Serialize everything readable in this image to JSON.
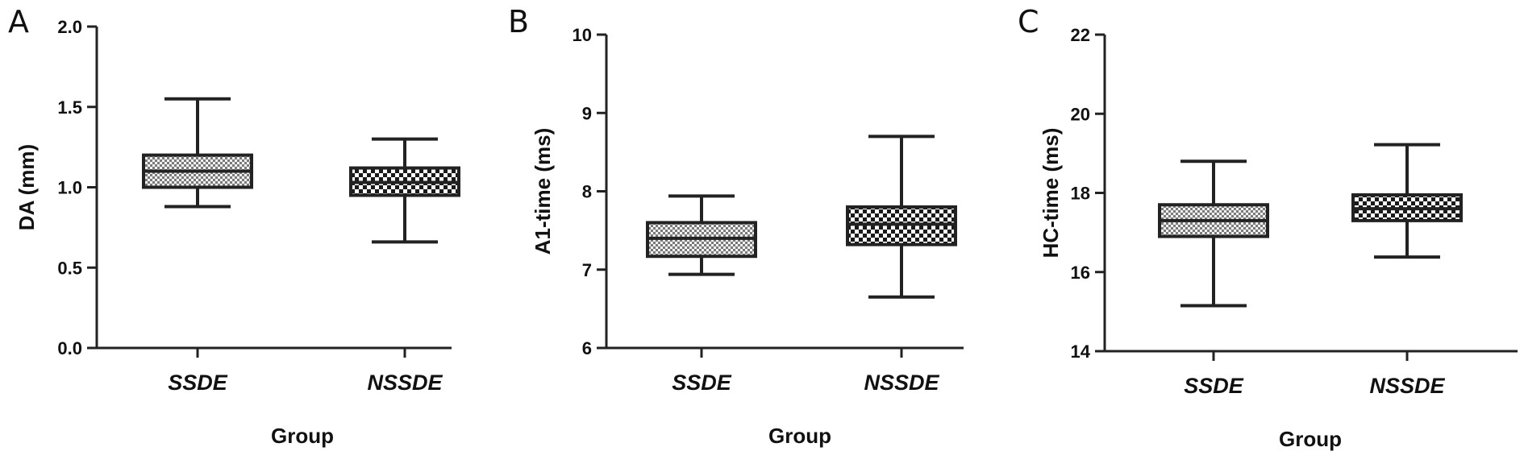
{
  "chart_data": [
    {
      "type": "box",
      "panel": "A",
      "xlabel": "Group",
      "ylabel": "DA (mm)",
      "ylim": [
        0,
        2.0
      ],
      "yticks": [
        "0.0",
        "0.5",
        "1.0",
        "1.5",
        "2.0"
      ],
      "categories": [
        "SSDE",
        "NSSDE"
      ],
      "boxes": [
        {
          "category": "SSDE",
          "min": 0.88,
          "q1": 1.0,
          "median": 1.1,
          "q3": 1.2,
          "max": 1.55,
          "pattern": "fine"
        },
        {
          "category": "NSSDE",
          "min": 0.66,
          "q1": 0.95,
          "median": 1.03,
          "q3": 1.12,
          "max": 1.3,
          "pattern": "coarse"
        }
      ]
    },
    {
      "type": "box",
      "panel": "B",
      "xlabel": "Group",
      "ylabel": "A1-time (ms)",
      "ylim": [
        6,
        10
      ],
      "yticks": [
        "6",
        "7",
        "8",
        "9",
        "10"
      ],
      "categories": [
        "SSDE",
        "NSSDE"
      ],
      "boxes": [
        {
          "category": "SSDE",
          "min": 6.94,
          "q1": 7.17,
          "median": 7.4,
          "q3": 7.6,
          "max": 7.94,
          "pattern": "fine"
        },
        {
          "category": "NSSDE",
          "min": 6.65,
          "q1": 7.32,
          "median": 7.58,
          "q3": 7.8,
          "max": 8.7,
          "pattern": "coarse"
        }
      ]
    },
    {
      "type": "box",
      "panel": "C",
      "xlabel": "Group",
      "ylabel": "HC-time (ms)",
      "ylim": [
        14,
        22
      ],
      "yticks": [
        "14",
        "16",
        "18",
        "20",
        "22"
      ],
      "categories": [
        "SSDE",
        "NSSDE"
      ],
      "boxes": [
        {
          "category": "SSDE",
          "min": 15.15,
          "q1": 16.9,
          "median": 17.3,
          "q3": 17.7,
          "max": 18.8,
          "pattern": "fine"
        },
        {
          "category": "NSSDE",
          "min": 16.38,
          "q1": 17.3,
          "median": 17.6,
          "q3": 17.95,
          "max": 19.22,
          "pattern": "coarse"
        }
      ]
    }
  ]
}
